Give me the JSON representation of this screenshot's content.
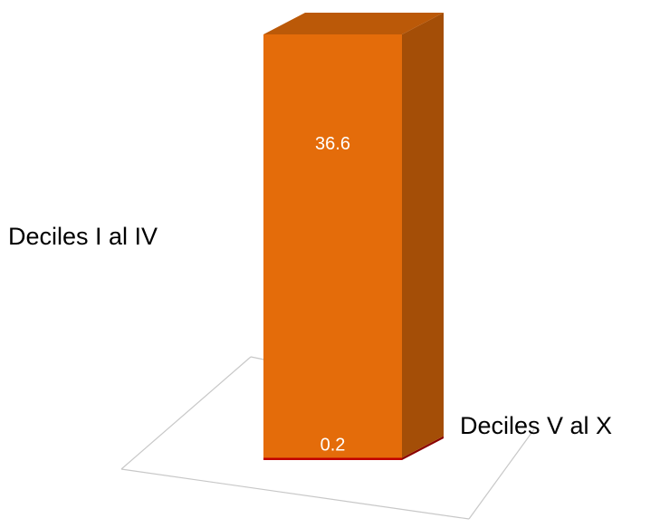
{
  "chart_data": {
    "type": "bar",
    "stacked": true,
    "three_d": true,
    "categories": [
      ""
    ],
    "series": [
      {
        "name": "Deciles V al X",
        "values": [
          0.2
        ],
        "color": "#c00000"
      },
      {
        "name": "Deciles I al IV",
        "values": [
          36.6
        ],
        "color": "#e46c0a"
      }
    ],
    "data_labels": [
      "0.2",
      "36.6"
    ],
    "data_label_color": "#ffffff",
    "legend_placement": "beside-bar-labels",
    "grid": false,
    "axes_visible": false
  }
}
